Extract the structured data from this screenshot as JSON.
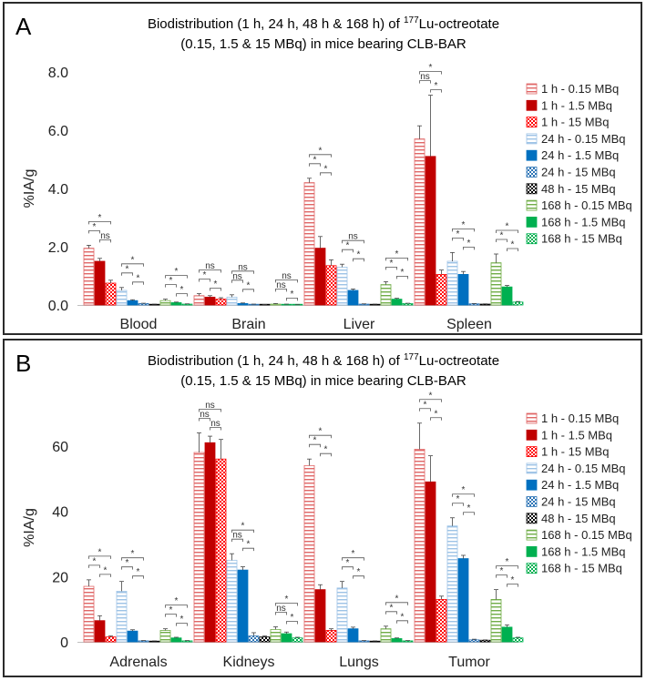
{
  "colors": {
    "series": [
      "#e06666",
      "#c00000",
      "#ff0000",
      "#9dc3e6",
      "#0070c0",
      "#2e75b6",
      "#000000",
      "#70ad47",
      "#00b050",
      "#00b050"
    ],
    "patterns": [
      "hlines",
      "solid",
      "checker",
      "hlines",
      "solid",
      "checker",
      "checker",
      "hlines",
      "solid",
      "checker"
    ]
  },
  "chart_data": [
    {
      "type": "bar",
      "panel": "A",
      "title_prefix": "Biodistribution (1 h, 24 h, 48 h & 168 h) of",
      "isotope_mass": "177",
      "title_suffix": "Lu-octreotate",
      "title_line2": "(0.15, 1.5 & 15 MBq) in mice bearing CLB-BAR",
      "ylabel": "%IA/g",
      "ylim": [
        0,
        8
      ],
      "yticks": [
        "0.0",
        "2.0",
        "4.0",
        "6.0",
        "8.0"
      ],
      "ytick_values": [
        0,
        2,
        4,
        6,
        8
      ],
      "categories": [
        "Blood",
        "Brain",
        "Liver",
        "Spleen"
      ],
      "series": [
        {
          "name": "1 h - 0.15 MBq",
          "values": [
            1.95,
            0.32,
            4.2,
            5.7
          ],
          "errors": [
            0.1,
            0.07,
            0.15,
            0.45
          ]
        },
        {
          "name": "1 h - 1.5 MBq",
          "values": [
            1.5,
            0.27,
            1.95,
            5.1
          ],
          "errors": [
            0.1,
            0.05,
            0.4,
            2.1
          ]
        },
        {
          "name": "1 h - 15 MBq",
          "values": [
            0.75,
            0.2,
            1.35,
            1.05
          ],
          "errors": [
            0.1,
            0.05,
            0.2,
            0.15
          ]
        },
        {
          "name": "24 h - 0.15 MBq",
          "values": [
            0.5,
            0.27,
            1.3,
            1.5
          ],
          "errors": [
            0.1,
            0.08,
            0.1,
            0.3
          ]
        },
        {
          "name": "24 h - 1.5 MBq",
          "values": [
            0.15,
            0.05,
            0.5,
            1.05
          ],
          "errors": [
            0.03,
            0.02,
            0.05,
            0.1
          ]
        },
        {
          "name": "24 h - 15 MBq",
          "values": [
            0.05,
            0.02,
            0.03,
            0.04
          ],
          "errors": [
            0.01,
            0.01,
            0.01,
            0.01
          ]
        },
        {
          "name": "48 h - 15 MBq",
          "values": [
            0.02,
            0.01,
            0.02,
            0.03
          ],
          "errors": [
            0.01,
            0.01,
            0.01,
            0.01
          ]
        },
        {
          "name": "168 h - 0.15 MBq",
          "values": [
            0.15,
            0.03,
            0.7,
            1.45
          ],
          "errors": [
            0.05,
            0.02,
            0.1,
            0.3
          ]
        },
        {
          "name": "168 h - 1.5 MBq",
          "values": [
            0.08,
            0.02,
            0.2,
            0.62
          ],
          "errors": [
            0.02,
            0.01,
            0.03,
            0.05
          ]
        },
        {
          "name": "168 h - 15 MBq",
          "values": [
            0.03,
            0.01,
            0.05,
            0.1
          ],
          "errors": [
            0.01,
            0.01,
            0.01,
            0.02
          ]
        }
      ],
      "significance": [
        [
          "*",
          "*",
          "ns",
          "*",
          "*",
          "*",
          "*",
          "*",
          "*",
          "*"
        ],
        [
          "ns",
          "*",
          "*",
          "ns",
          "ns",
          "*",
          "ns",
          "ns",
          "*",
          "*"
        ],
        [
          "*",
          "*",
          "*",
          "ns",
          "*",
          "*",
          "*",
          "*",
          "*",
          "*"
        ],
        [
          "*",
          "ns",
          "*",
          "*",
          "*",
          "*",
          "*",
          "*",
          "*",
          "*"
        ]
      ]
    },
    {
      "type": "bar",
      "panel": "B",
      "title_prefix": "Biodistribution (1 h, 24 h, 48 h & 168 h) of",
      "isotope_mass": "177",
      "title_suffix": "Lu-octreotate",
      "title_line2": "(0.15, 1.5 & 15 MBq) in mice bearing CLB-BAR",
      "ylabel": "%IA/g",
      "ylim": [
        0,
        70
      ],
      "yticks": [
        "0",
        "20",
        "40",
        "60"
      ],
      "ytick_values": [
        0,
        20,
        40,
        60
      ],
      "categories": [
        "Adrenals",
        "Kidneys",
        "Lungs",
        "Tumor"
      ],
      "series": [
        {
          "name": "1 h - 0.15 MBq",
          "values": [
            17,
            58,
            54,
            59
          ],
          "errors": [
            2,
            6,
            2,
            8
          ]
        },
        {
          "name": "1 h - 1.5 MBq",
          "values": [
            6.5,
            61,
            16,
            49
          ],
          "errors": [
            1.5,
            2,
            1.5,
            8
          ]
        },
        {
          "name": "1 h - 15 MBq",
          "values": [
            1.5,
            56,
            3.5,
            13
          ],
          "errors": [
            0.3,
            6,
            0.5,
            1
          ]
        },
        {
          "name": "24 h - 0.15 MBq",
          "values": [
            15.5,
            25,
            16.5,
            35.5
          ],
          "errors": [
            3,
            2,
            2,
            2.5
          ]
        },
        {
          "name": "24 h - 1.5 MBq",
          "values": [
            3.3,
            22,
            4,
            25.5
          ],
          "errors": [
            0.4,
            1,
            0.5,
            1
          ]
        },
        {
          "name": "24 h - 15 MBq",
          "values": [
            0.3,
            1.8,
            0.3,
            0.6
          ],
          "errors": [
            0.1,
            1,
            0.1,
            0.2
          ]
        },
        {
          "name": "48 h - 15 MBq",
          "values": [
            0.2,
            1.5,
            0.2,
            0.5
          ],
          "errors": [
            0.1,
            0.3,
            0.1,
            0.1
          ]
        },
        {
          "name": "168 h - 0.15 MBq",
          "values": [
            3.5,
            3.8,
            4,
            13
          ],
          "errors": [
            0.5,
            0.8,
            0.8,
            3
          ]
        },
        {
          "name": "168 h - 1.5 MBq",
          "values": [
            1.2,
            2.5,
            1,
            4.5
          ],
          "errors": [
            0.2,
            0.5,
            0.2,
            0.7
          ]
        },
        {
          "name": "168 h - 15 MBq",
          "values": [
            0.3,
            1.2,
            0.3,
            1.2
          ],
          "errors": [
            0.1,
            0.2,
            0.1,
            0.2
          ]
        }
      ],
      "significance": [
        [
          "*",
          "*",
          "*",
          "*",
          "*",
          "*",
          "*",
          "*",
          "*",
          "*"
        ],
        [
          "ns",
          "ns",
          "ns",
          "*",
          "ns",
          "*",
          "*",
          "ns",
          "*",
          "*"
        ],
        [
          "*",
          "*",
          "*",
          "*",
          "*",
          "*",
          "*",
          "*",
          "*",
          "*"
        ],
        [
          "*",
          "*",
          "*",
          "*",
          "*",
          "*",
          "*",
          "*",
          "*",
          "*"
        ]
      ]
    }
  ]
}
